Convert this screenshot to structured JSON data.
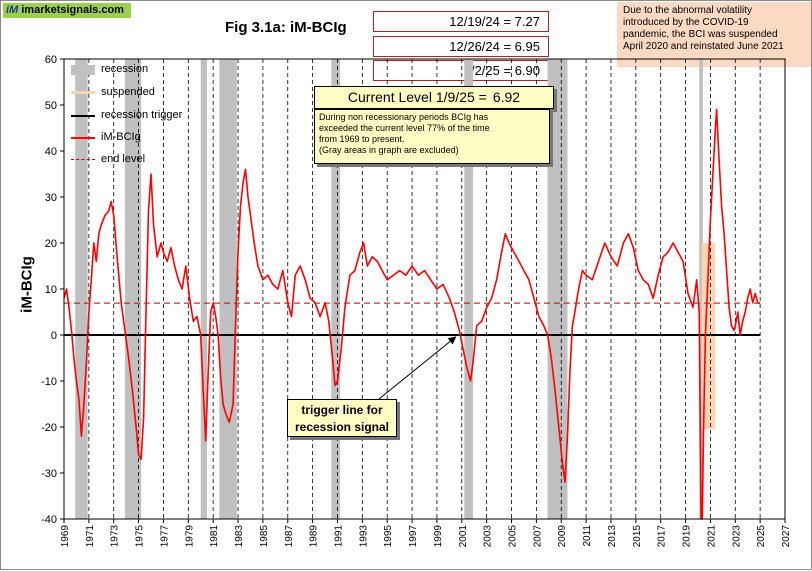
{
  "header": {
    "logo_text": "imarketsignals.com",
    "logo_mark": "iM",
    "title": "Fig 3.1a:  iM-BCIg"
  },
  "value_boxes": [
    {
      "label": "12/19/24  =  7.27"
    },
    {
      "label": "12/26/24  =  6.95"
    },
    {
      "label": "1/2/25  =  6.90"
    }
  ],
  "current": {
    "label": "Current Level 1/9/25  =",
    "value": "6.92",
    "value_num": 6.92
  },
  "callout_lines": [
    "During non recessionary periods BCIg has",
    "exceeded the current level 77% of the time",
    "from 1969 to present.",
    "(Gray areas in graph are excluded)"
  ],
  "note_lines": [
    "Due to the abnormal volatility",
    "introduced by the COVID-19",
    "pandemic, the BCI  was suspended",
    "April 2020 and reinstated June 2021"
  ],
  "trigger_label_lines": [
    "trigger line for",
    "recession signal"
  ],
  "colors": {
    "series": "#ff0000",
    "recession": "#c0c0c0",
    "suspended": "#fcd5b4",
    "trigger": "#000000",
    "end_level": "#c00000"
  },
  "chart_data": {
    "type": "line",
    "ylabel": "iM-BCIg",
    "ylim": [
      -40,
      60
    ],
    "y_ticks": [
      -40,
      -30,
      -20,
      -10,
      0,
      10,
      20,
      30,
      40,
      50,
      60
    ],
    "xlim": [
      1969,
      2027
    ],
    "x_ticks": [
      1969,
      1971,
      1973,
      1975,
      1977,
      1979,
      1981,
      1983,
      1985,
      1987,
      1989,
      1991,
      1993,
      1995,
      1997,
      1999,
      2001,
      2003,
      2005,
      2007,
      2009,
      2011,
      2013,
      2015,
      2017,
      2019,
      2021,
      2023,
      2025,
      2027
    ],
    "grid": "vertical dashed",
    "legend_position": "top-left",
    "legend": [
      "recession",
      "suspended",
      "recession trigger",
      "iM-BCIg",
      "end level"
    ],
    "recessions": [
      [
        1969.9,
        1970.9
      ],
      [
        1973.9,
        1975.2
      ],
      [
        1980.0,
        1980.5
      ],
      [
        1981.5,
        1982.9
      ],
      [
        1990.5,
        1991.2
      ],
      [
        2001.2,
        2001.9
      ],
      [
        2007.9,
        2009.5
      ],
      [
        2020.1,
        2020.4
      ]
    ],
    "suspended": {
      "x": [
        2020.3,
        2021.4
      ],
      "y": [
        -20.5,
        20
      ]
    },
    "trigger_level": 0,
    "end_level": 6.92,
    "series": [
      {
        "name": "iM-BCIg",
        "points": [
          [
            1969.0,
            8
          ],
          [
            1969.2,
            10
          ],
          [
            1969.4,
            6
          ],
          [
            1969.6,
            1
          ],
          [
            1969.8,
            -5
          ],
          [
            1970.0,
            -10
          ],
          [
            1970.2,
            -14
          ],
          [
            1970.4,
            -22
          ],
          [
            1970.6,
            -15
          ],
          [
            1970.8,
            -6
          ],
          [
            1971.0,
            5
          ],
          [
            1971.2,
            12
          ],
          [
            1971.4,
            20
          ],
          [
            1971.6,
            16
          ],
          [
            1971.8,
            22
          ],
          [
            1972.0,
            24
          ],
          [
            1972.3,
            26
          ],
          [
            1972.6,
            27
          ],
          [
            1972.8,
            29
          ],
          [
            1973.0,
            26
          ],
          [
            1973.3,
            16
          ],
          [
            1973.6,
            7
          ],
          [
            1973.9,
            1
          ],
          [
            1974.2,
            -5
          ],
          [
            1974.5,
            -12
          ],
          [
            1974.8,
            -20
          ],
          [
            1975.0,
            -26
          ],
          [
            1975.2,
            -27
          ],
          [
            1975.4,
            -18
          ],
          [
            1975.6,
            5
          ],
          [
            1975.8,
            27
          ],
          [
            1976.0,
            35
          ],
          [
            1976.2,
            24
          ],
          [
            1976.5,
            17
          ],
          [
            1976.8,
            20
          ],
          [
            1977.0,
            18
          ],
          [
            1977.3,
            16
          ],
          [
            1977.6,
            19
          ],
          [
            1977.9,
            15
          ],
          [
            1978.2,
            12
          ],
          [
            1978.5,
            10
          ],
          [
            1978.8,
            15
          ],
          [
            1979.1,
            8
          ],
          [
            1979.4,
            3
          ],
          [
            1979.7,
            4
          ],
          [
            1980.0,
            0
          ],
          [
            1980.2,
            -12
          ],
          [
            1980.4,
            -23
          ],
          [
            1980.6,
            -8
          ],
          [
            1980.8,
            5
          ],
          [
            1981.0,
            7
          ],
          [
            1981.2,
            4
          ],
          [
            1981.4,
            0
          ],
          [
            1981.6,
            -9
          ],
          [
            1981.8,
            -15
          ],
          [
            1982.0,
            -17
          ],
          [
            1982.3,
            -19
          ],
          [
            1982.6,
            -15
          ],
          [
            1982.8,
            2
          ],
          [
            1983.0,
            18
          ],
          [
            1983.2,
            28
          ],
          [
            1983.4,
            33
          ],
          [
            1983.6,
            36
          ],
          [
            1983.8,
            30
          ],
          [
            1984.0,
            26
          ],
          [
            1984.3,
            20
          ],
          [
            1984.6,
            15
          ],
          [
            1985.0,
            12
          ],
          [
            1985.4,
            13
          ],
          [
            1985.8,
            11
          ],
          [
            1986.2,
            10
          ],
          [
            1986.6,
            14
          ],
          [
            1987.0,
            7
          ],
          [
            1987.3,
            4
          ],
          [
            1987.6,
            13
          ],
          [
            1988.0,
            15
          ],
          [
            1988.4,
            12
          ],
          [
            1988.8,
            8
          ],
          [
            1989.2,
            7
          ],
          [
            1989.6,
            4
          ],
          [
            1990.0,
            7
          ],
          [
            1990.3,
            3
          ],
          [
            1990.6,
            -5
          ],
          [
            1990.8,
            -11
          ],
          [
            1991.0,
            -10
          ],
          [
            1991.3,
            -3
          ],
          [
            1991.6,
            6
          ],
          [
            1992.0,
            13
          ],
          [
            1992.4,
            14
          ],
          [
            1992.8,
            18
          ],
          [
            1993.1,
            20
          ],
          [
            1993.4,
            15
          ],
          [
            1993.8,
            17
          ],
          [
            1994.2,
            16
          ],
          [
            1994.6,
            14
          ],
          [
            1995.0,
            12
          ],
          [
            1995.5,
            13
          ],
          [
            1996.0,
            14
          ],
          [
            1996.5,
            13
          ],
          [
            1997.0,
            15
          ],
          [
            1997.5,
            13
          ],
          [
            1998.0,
            14
          ],
          [
            1998.5,
            12
          ],
          [
            1999.0,
            10
          ],
          [
            1999.5,
            11
          ],
          [
            2000.0,
            8
          ],
          [
            2000.4,
            5
          ],
          [
            2000.8,
            1
          ],
          [
            2001.1,
            -3
          ],
          [
            2001.4,
            -7
          ],
          [
            2001.7,
            -10
          ],
          [
            2001.9,
            -6
          ],
          [
            2002.2,
            2
          ],
          [
            2002.6,
            3
          ],
          [
            2003.0,
            6
          ],
          [
            2003.4,
            8
          ],
          [
            2003.8,
            12
          ],
          [
            2004.2,
            18
          ],
          [
            2004.5,
            22
          ],
          [
            2004.8,
            20
          ],
          [
            2005.2,
            18
          ],
          [
            2005.6,
            16
          ],
          [
            2006.0,
            14
          ],
          [
            2006.4,
            12
          ],
          [
            2006.8,
            8
          ],
          [
            2007.2,
            4
          ],
          [
            2007.6,
            2
          ],
          [
            2007.9,
            0
          ],
          [
            2008.2,
            -5
          ],
          [
            2008.5,
            -12
          ],
          [
            2008.8,
            -20
          ],
          [
            2009.1,
            -28
          ],
          [
            2009.3,
            -32
          ],
          [
            2009.5,
            -22
          ],
          [
            2009.7,
            -8
          ],
          [
            2009.9,
            2
          ],
          [
            2010.1,
            5
          ],
          [
            2010.4,
            10
          ],
          [
            2010.7,
            14
          ],
          [
            2011.0,
            13
          ],
          [
            2011.5,
            12
          ],
          [
            2012.0,
            16
          ],
          [
            2012.5,
            20
          ],
          [
            2013.0,
            17
          ],
          [
            2013.5,
            15
          ],
          [
            2014.0,
            20
          ],
          [
            2014.4,
            22
          ],
          [
            2014.8,
            19
          ],
          [
            2015.2,
            14
          ],
          [
            2015.6,
            12
          ],
          [
            2016.0,
            11
          ],
          [
            2016.4,
            8
          ],
          [
            2016.8,
            13
          ],
          [
            2017.2,
            17
          ],
          [
            2017.6,
            18
          ],
          [
            2018.0,
            20
          ],
          [
            2018.4,
            18
          ],
          [
            2018.8,
            16
          ],
          [
            2019.2,
            9
          ],
          [
            2019.6,
            6
          ],
          [
            2019.9,
            12
          ],
          [
            2020.1,
            5
          ],
          [
            2020.25,
            -40
          ],
          [
            2020.35,
            -40
          ],
          [
            2020.45,
            -20
          ],
          [
            2020.6,
            0
          ],
          [
            2020.8,
            12
          ],
          [
            2021.0,
            25
          ],
          [
            2021.2,
            35
          ],
          [
            2021.4,
            45
          ],
          [
            2021.5,
            49
          ],
          [
            2021.7,
            38
          ],
          [
            2021.9,
            28
          ],
          [
            2022.1,
            22
          ],
          [
            2022.3,
            14
          ],
          [
            2022.5,
            6
          ],
          [
            2022.7,
            2
          ],
          [
            2022.9,
            1
          ],
          [
            2023.0,
            2
          ],
          [
            2023.2,
            5
          ],
          [
            2023.4,
            0
          ],
          [
            2023.6,
            3
          ],
          [
            2023.8,
            5
          ],
          [
            2024.0,
            8
          ],
          [
            2024.2,
            10
          ],
          [
            2024.4,
            7
          ],
          [
            2024.6,
            9
          ],
          [
            2024.8,
            7
          ],
          [
            2025.0,
            6.92
          ]
        ]
      }
    ]
  }
}
